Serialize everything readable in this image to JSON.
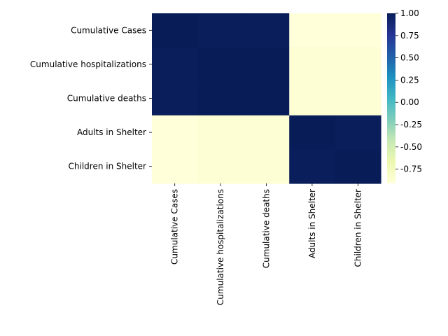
{
  "chart_data": {
    "type": "heatmap",
    "title": "",
    "xlabel": "",
    "ylabel": "",
    "rows": [
      "Cumulative Cases",
      "Cumulative hospitalizations",
      "Cumulative deaths",
      "Adults in Shelter",
      "Children in Shelter"
    ],
    "columns": [
      "Cumulative Cases",
      "Cumulative hospitalizations",
      "Cumulative deaths",
      "Adults in Shelter",
      "Children in Shelter"
    ],
    "values": [
      [
        1.0,
        0.99,
        0.99,
        -0.91,
        -0.91
      ],
      [
        0.99,
        1.0,
        1.0,
        -0.88,
        -0.88
      ],
      [
        0.99,
        1.0,
        1.0,
        -0.88,
        -0.88
      ],
      [
        -0.91,
        -0.88,
        -0.88,
        1.0,
        0.99
      ],
      [
        -0.91,
        -0.88,
        -0.88,
        0.99,
        1.0
      ]
    ],
    "colorbar": {
      "vmin": -0.91,
      "vmax": 1.0,
      "ticks": [
        "1.00",
        "0.75",
        "0.50",
        "0.25",
        "0.00",
        "-0.25",
        "-0.50",
        "-0.75"
      ],
      "tick_values": [
        1.0,
        0.75,
        0.5,
        0.25,
        0.0,
        -0.25,
        -0.5,
        -0.75
      ],
      "colormap": "YlGnBu",
      "position": "right"
    },
    "grid": false
  }
}
